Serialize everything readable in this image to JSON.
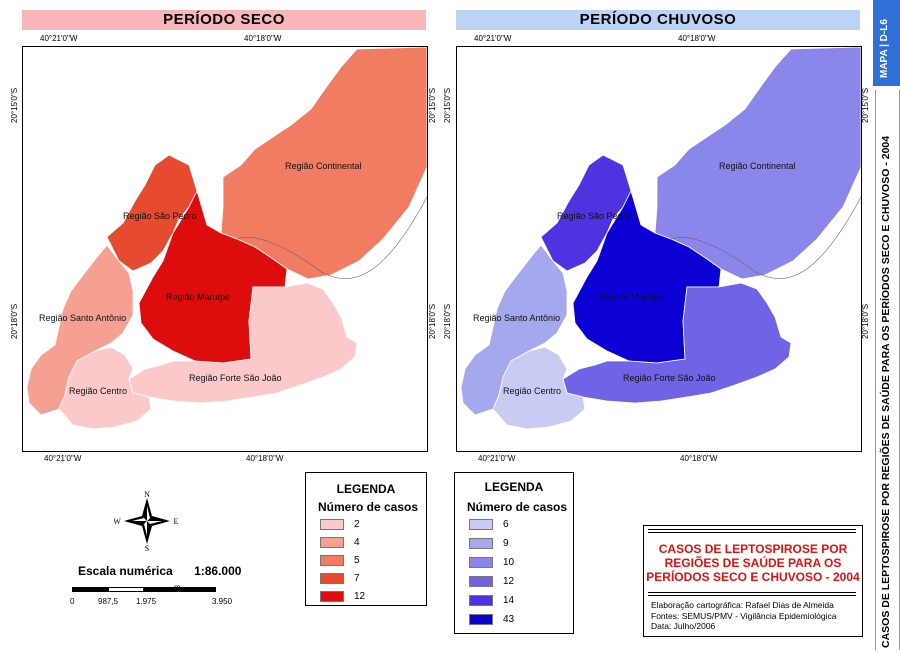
{
  "panels": {
    "dry": {
      "title": "PERÍODO SECO",
      "title_bg": "#f8b6b9"
    },
    "rainy": {
      "title": "PERÍODO CHUVOSO",
      "title_bg": "#bcd3f8"
    }
  },
  "coords": {
    "lon_left": "40°21'0\"W",
    "lon_right": "40°18'0\"W",
    "lat_top": "20°15'0\"S",
    "lat_bottom": "20°18'0\"S"
  },
  "regions": {
    "continental": "Região Continental",
    "sao_pedro": "Região São Pedro",
    "maruipe": "Região Maruípe",
    "santo_antonio": "Região Santo Antônio",
    "centro": "Região Centro",
    "forte": "Região Forte São João"
  },
  "legend_dry": {
    "title": "LEGENDA",
    "subtitle": "Número de casos",
    "items": [
      {
        "label": "2",
        "color": "#fbc9c9"
      },
      {
        "label": "4",
        "color": "#f6a092"
      },
      {
        "label": "5",
        "color": "#f27c62"
      },
      {
        "label": "7",
        "color": "#e64a2f"
      },
      {
        "label": "12",
        "color": "#de0d0d"
      }
    ]
  },
  "legend_rainy": {
    "title": "LEGENDA",
    "subtitle": "Número de casos",
    "items": [
      {
        "label": "6",
        "color": "#c8ccf5"
      },
      {
        "label": "9",
        "color": "#a6a8ee"
      },
      {
        "label": "10",
        "color": "#8b86ea"
      },
      {
        "label": "12",
        "color": "#6f63e6"
      },
      {
        "label": "14",
        "color": "#4f32e0"
      },
      {
        "label": "43",
        "color": "#0c02d6"
      }
    ]
  },
  "compass": {
    "n": "N",
    "s": "S",
    "e": "E",
    "w": "W"
  },
  "scale": {
    "label": "Escala numérica",
    "value": "1:86.000",
    "ticks": [
      "0",
      "987,5",
      "1.975",
      "3.950"
    ],
    "unit": "m"
  },
  "title_box": {
    "lines": [
      "CASOS DE LEPTOSPIROSE POR",
      "REGIÕES DE SAÚDE PARA OS",
      "PERÍODOS SECO E CHUVOSO - 2004"
    ],
    "credits": [
      "Elaboração cartográfica: Rafael Dias de Almeida",
      "Fontes: SEMUS/PMV - Vigilância Epidemiológica",
      "Data: Julho/2006"
    ]
  },
  "sidebar": {
    "tab_label": "MAPA | D-L6",
    "title": "CASOS DE LEPTOSPIROSE POR REGIÕES DE SAÚDE PARA OS PERÍODOS SECO E CHUVOSO - 2004",
    "tab_color": "#2f6fd6"
  },
  "region_counts": {
    "dry": {
      "continental": 5,
      "sao_pedro": 7,
      "maruipe": 12,
      "santo_antonio": 4,
      "centro": 2,
      "forte": 2
    },
    "rainy": {
      "continental": 10,
      "sao_pedro": 14,
      "maruipe": 43,
      "santo_antonio": 9,
      "centro": 6,
      "forte": 12
    }
  }
}
